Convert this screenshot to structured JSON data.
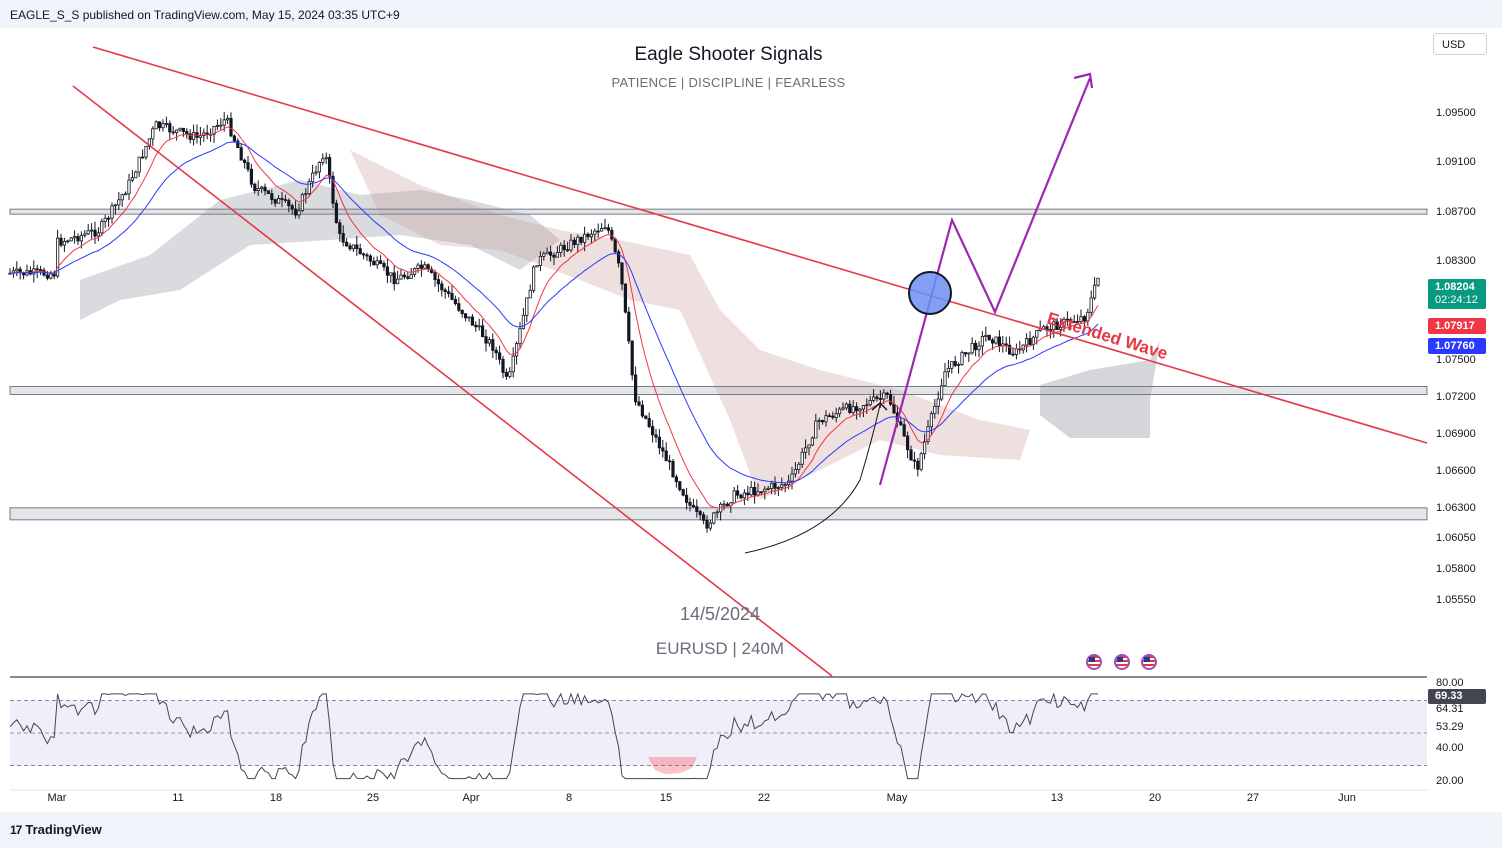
{
  "header": {
    "publisher": "EAGLE_S_S published on TradingView.com, May 15, 2024 03:35 UTC+9"
  },
  "footer": {
    "logo_mark": "17",
    "logo_text": "TradingView"
  },
  "scale": {
    "currency_button": "USD"
  },
  "title": "Eagle Shooter Signals",
  "subtitle": "PATIENCE | DISCIPLINE | FEARLESS",
  "notes": {
    "date": "14/5/2024",
    "pair": "EURUSD | 240M"
  },
  "colors": {
    "trendline": "#e53947",
    "projection": "#9c27b0",
    "ema_fast": "#f23645",
    "ema_slow": "#2a39ff",
    "bull_tag": "#089981",
    "rsi_line": "#434651",
    "rsi_band": "#7e57c2"
  },
  "chart_data": {
    "type": "line",
    "symbol": "EURUSD",
    "timeframe": "240M",
    "x_ticks": [
      "Mar",
      "11",
      "18",
      "25",
      "Apr",
      "8",
      "15",
      "22",
      "May",
      "13",
      "20",
      "27",
      "Jun"
    ],
    "y_ticks": [
      "1.09500",
      "1.09100",
      "1.08700",
      "1.08300",
      "1.07500",
      "1.07200",
      "1.06900",
      "1.06600",
      "1.06300",
      "1.06050",
      "1.05800",
      "1.05550"
    ],
    "ylim": [
      1.0535,
      1.0995
    ],
    "price_series": [
      {
        "x": "Mar 1",
        "y": 1.0845
      },
      {
        "x": "Mar 4",
        "y": 1.0855
      },
      {
        "x": "Mar 6",
        "y": 1.089
      },
      {
        "x": "Mar 8",
        "y": 1.094
      },
      {
        "x": "Mar 11",
        "y": 1.093
      },
      {
        "x": "Mar 13",
        "y": 1.0945
      },
      {
        "x": "Mar 15",
        "y": 1.089
      },
      {
        "x": "Mar 18",
        "y": 1.087
      },
      {
        "x": "Mar 20",
        "y": 1.092
      },
      {
        "x": "Mar 21",
        "y": 1.085
      },
      {
        "x": "Mar 25",
        "y": 1.0815
      },
      {
        "x": "Mar 27",
        "y": 1.0825
      },
      {
        "x": "Apr 1",
        "y": 1.076
      },
      {
        "x": "Apr 2",
        "y": 1.073
      },
      {
        "x": "Apr 4",
        "y": 1.083
      },
      {
        "x": "Apr 5",
        "y": 1.0835
      },
      {
        "x": "Apr 9",
        "y": 1.086
      },
      {
        "x": "Apr 10",
        "y": 1.082
      },
      {
        "x": "Apr 11",
        "y": 1.072
      },
      {
        "x": "Apr 15",
        "y": 1.063
      },
      {
        "x": "Apr 16",
        "y": 1.0615
      },
      {
        "x": "Apr 18",
        "y": 1.064
      },
      {
        "x": "Apr 22",
        "y": 1.065
      },
      {
        "x": "Apr 24",
        "y": 1.07
      },
      {
        "x": "Apr 26",
        "y": 1.071
      },
      {
        "x": "Apr 29",
        "y": 1.072
      },
      {
        "x": "May 1",
        "y": 1.066
      },
      {
        "x": "May 3",
        "y": 1.074
      },
      {
        "x": "May 6",
        "y": 1.077
      },
      {
        "x": "May 8",
        "y": 1.0755
      },
      {
        "x": "May 10",
        "y": 1.0775
      },
      {
        "x": "May 13",
        "y": 1.0785
      },
      {
        "x": "May 14",
        "y": 1.082
      }
    ],
    "ema_fast": 1.07917,
    "ema_slow": 1.0776,
    "last_price": 1.08204,
    "countdown": "02:24:12",
    "labels": {
      "last_price": "1.08204",
      "countdown": "02:24:12",
      "ema_fast": "1.07917",
      "ema_slow": "1.07760"
    },
    "horizontal_zones": [
      1.087,
      1.0725,
      1.0625
    ],
    "annotation": "Extended Wave",
    "rsi": {
      "y_ticks": [
        "80.00",
        "40.00",
        "20.00"
      ],
      "levels": [
        "64.31",
        "53.29"
      ],
      "current": "69.33",
      "ylim": [
        15,
        85
      ]
    }
  }
}
